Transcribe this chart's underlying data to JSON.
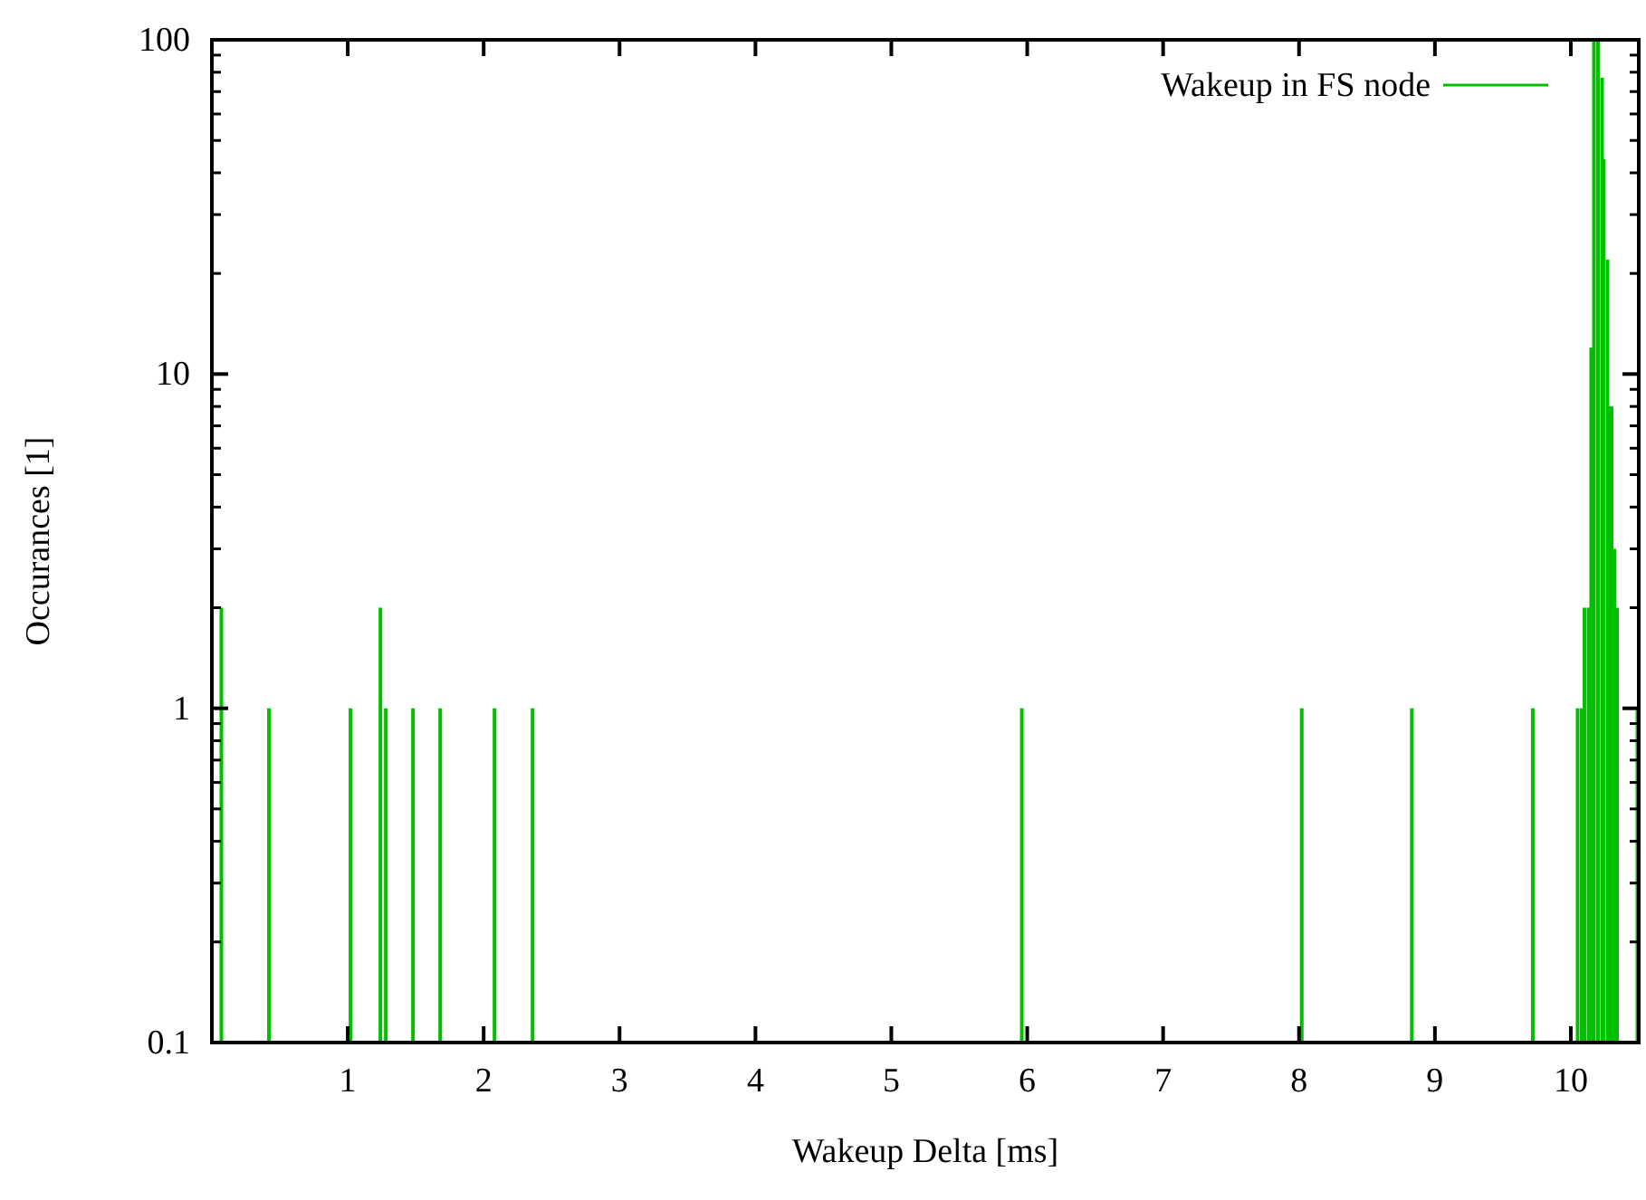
{
  "chart_data": {
    "type": "bar",
    "xlabel": "Wakeup Delta [ms]",
    "ylabel": "Occurances [1]",
    "log": "y",
    "xlim": [
      0,
      10.5
    ],
    "ylim": [
      0.1,
      100
    ],
    "xticks": [
      1,
      2,
      3,
      4,
      5,
      6,
      7,
      8,
      9,
      10
    ],
    "yticks": [
      0.1,
      1,
      10,
      100
    ],
    "legend": "top right",
    "grid": false,
    "x": [
      0.07,
      0.42,
      1.02,
      1.24,
      1.28,
      1.48,
      1.68,
      2.08,
      2.36,
      5.96,
      8.02,
      8.83,
      9.72,
      10.05,
      10.08,
      10.1,
      10.13,
      10.15,
      10.17,
      10.2,
      10.23,
      10.24,
      10.27,
      10.28,
      10.3,
      10.32,
      10.34,
      10.49
    ],
    "series": [
      {
        "name": "Wakeup in FS node",
        "color": "#00c000",
        "values": [
          2,
          1,
          1,
          2,
          1,
          1,
          1,
          1,
          1,
          1,
          1,
          1,
          1,
          1,
          1,
          2,
          2,
          12,
          100,
          100,
          77,
          44,
          22,
          8,
          8,
          3,
          2,
          1
        ]
      }
    ]
  }
}
